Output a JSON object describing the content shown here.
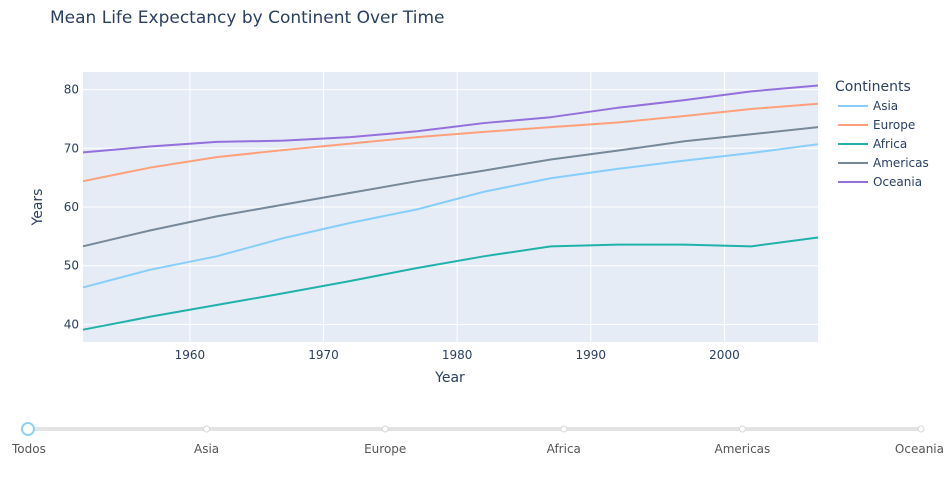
{
  "chart_data": {
    "type": "line",
    "title": "Mean Life Expectancy by Continent Over Time",
    "xlabel": "Year",
    "ylabel": "Years",
    "x": [
      1952,
      1957,
      1962,
      1967,
      1972,
      1977,
      1982,
      1987,
      1992,
      1997,
      2002,
      2007
    ],
    "xlim": [
      1952,
      2007
    ],
    "ylim": [
      37,
      83
    ],
    "xticks": [
      1960,
      1970,
      1980,
      1990,
      2000
    ],
    "yticks": [
      40,
      50,
      60,
      70,
      80
    ],
    "grid": true,
    "legend_title": "Continents",
    "legend_position": "right",
    "series": [
      {
        "name": "Asia",
        "color": "#87CEFA",
        "values": [
          46.3,
          49.3,
          51.6,
          54.7,
          57.3,
          59.6,
          62.6,
          64.9,
          66.5,
          67.9,
          69.2,
          70.7
        ]
      },
      {
        "name": "Europe",
        "color": "#FFA07A",
        "values": [
          64.4,
          66.7,
          68.5,
          69.7,
          70.8,
          71.9,
          72.8,
          73.6,
          74.4,
          75.5,
          76.7,
          77.6
        ]
      },
      {
        "name": "Africa",
        "color": "#20B2AA",
        "values": [
          39.1,
          41.3,
          43.3,
          45.3,
          47.4,
          49.6,
          51.6,
          53.3,
          53.6,
          53.6,
          53.3,
          54.8
        ]
      },
      {
        "name": "Americas",
        "color": "#778899",
        "values": [
          53.3,
          56.0,
          58.4,
          60.4,
          62.4,
          64.4,
          66.2,
          68.1,
          69.6,
          71.2,
          72.4,
          73.6
        ]
      },
      {
        "name": "Oceania",
        "color": "#9370DB",
        "values": [
          69.3,
          70.3,
          71.1,
          71.3,
          71.9,
          72.9,
          74.3,
          75.3,
          76.9,
          78.2,
          79.7,
          80.7
        ]
      }
    ]
  },
  "slider": {
    "steps": [
      "Todos",
      "Asia",
      "Europe",
      "Africa",
      "Americas",
      "Oceania"
    ],
    "active_index": 0
  }
}
